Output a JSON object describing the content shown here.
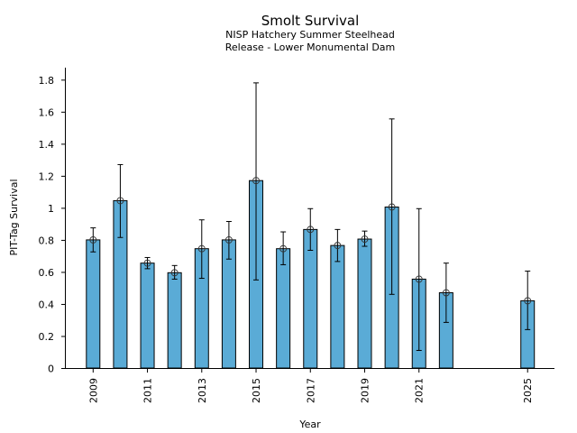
{
  "chart_data": {
    "type": "bar",
    "title": "Smolt Survival",
    "subtitle_lines": [
      "NISP Hatchery Summer Steelhead",
      "Release - Lower Monumental Dam"
    ],
    "xlabel": "Year",
    "ylabel": "PIT-Tag Survival",
    "xlim": [
      2007.9,
      2025.9
    ],
    "ylim": [
      0,
      1.86
    ],
    "yticks": [
      0,
      0.2,
      0.4,
      0.6,
      0.8,
      1,
      1.2,
      1.4,
      1.6,
      1.8
    ],
    "ytick_labels": [
      "0",
      "0.2",
      "0.4",
      "0.6",
      "0.8",
      "1",
      "1.2",
      "1.4",
      "1.6",
      "1.8"
    ],
    "xticks": [
      2009,
      2011,
      2013,
      2015,
      2017,
      2019,
      2021,
      2025
    ],
    "xtick_labels": [
      "2009",
      "2011",
      "2013",
      "2015",
      "2017",
      "2019",
      "2021",
      "2025"
    ],
    "bar_color": "#5aabd6",
    "edge_color": "#000000",
    "grid": false,
    "legend": "none",
    "series": [
      {
        "name": "PIT-Tag Survival",
        "x": [
          2009,
          2010,
          2011,
          2012,
          2013,
          2014,
          2015,
          2016,
          2017,
          2018,
          2019,
          2020,
          2021,
          2022,
          2025
        ],
        "values": [
          0.8,
          1.045,
          0.655,
          0.595,
          0.745,
          0.8,
          1.17,
          0.745,
          0.865,
          0.765,
          0.805,
          1.005,
          0.555,
          0.47,
          0.42
        ],
        "err_low": [
          0.725,
          0.815,
          0.62,
          0.555,
          0.56,
          0.68,
          0.55,
          0.645,
          0.735,
          0.665,
          0.76,
          0.46,
          0.11,
          0.285,
          0.24
        ],
        "err_high": [
          0.875,
          1.27,
          0.69,
          0.64,
          0.925,
          0.915,
          1.78,
          0.85,
          0.995,
          0.865,
          0.855,
          1.555,
          0.995,
          0.655,
          0.605
        ]
      }
    ]
  }
}
